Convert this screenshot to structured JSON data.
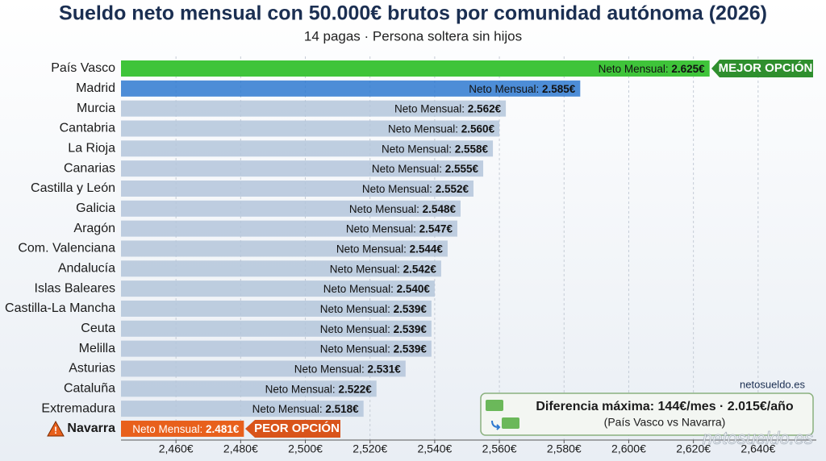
{
  "chart_data": {
    "type": "hbar",
    "title": "Sueldo neto mensual con 50.000€ brutos por comunidad autónoma (2026)",
    "subtitle": "14 pagas · Persona soltera sin hijos",
    "categories": [
      "País Vasco",
      "Madrid",
      "Murcia",
      "Cantabria",
      "La Rioja",
      "Canarias",
      "Castilla y León",
      "Galicia",
      "Aragón",
      "Com. Valenciana",
      "Andalucía",
      "Islas Baleares",
      "Castilla-La Mancha",
      "Ceuta",
      "Melilla",
      "Asturias",
      "Cataluña",
      "Extremadura",
      "Navarra"
    ],
    "values": [
      2625,
      2585,
      2562,
      2560,
      2558,
      2555,
      2552,
      2548,
      2547,
      2544,
      2542,
      2540,
      2539,
      2539,
      2539,
      2531,
      2522,
      2518,
      2481
    ],
    "value_labels": [
      "2.625€",
      "2.585€",
      "2.562€",
      "2.560€",
      "2.558€",
      "2.555€",
      "2.552€",
      "2.548€",
      "2.547€",
      "2.544€",
      "2.542€",
      "2.540€",
      "2.539€",
      "2.539€",
      "2.539€",
      "2.531€",
      "2.522€",
      "2.518€",
      "2.481€"
    ],
    "label_prefix": "Neto Mensual:",
    "colors": [
      "#3fc43a",
      "#2e79d0",
      "#b4c6da",
      "#b4c6da",
      "#b4c6da",
      "#b4c6da",
      "#b4c6da",
      "#b4c6da",
      "#b4c6da",
      "#b4c6da",
      "#b4c6da",
      "#b4c6da",
      "#b4c6da",
      "#b4c6da",
      "#b4c6da",
      "#b4c6da",
      "#b4c6da",
      "#b4c6da",
      "#e8601c"
    ],
    "xlim": [
      2443,
      2658
    ],
    "xticks": [
      {
        "value": 2460,
        "label": "2,460€"
      },
      {
        "value": 2480,
        "label": "2,480€"
      },
      {
        "value": 2500,
        "label": "2,500€"
      },
      {
        "value": 2520,
        "label": "2,520€"
      },
      {
        "value": 2540,
        "label": "2,540€"
      },
      {
        "value": 2560,
        "label": "2,560€"
      },
      {
        "value": 2580,
        "label": "2,580€"
      },
      {
        "value": 2600,
        "label": "2,600€"
      },
      {
        "value": 2620,
        "label": "2,620€"
      },
      {
        "value": 2640,
        "label": "2,640€"
      }
    ],
    "grid": true,
    "annotations": {
      "best": "MEJOR OPCIÓN",
      "worst": "PEOR OPCIÓN",
      "source": "netosueldo.es",
      "difference": "Diferencia máxima: 144€/mes · 2.015€/año",
      "comparison": "(País Vasco vs Navarra)",
      "watermark": "netosueldo.es"
    }
  }
}
